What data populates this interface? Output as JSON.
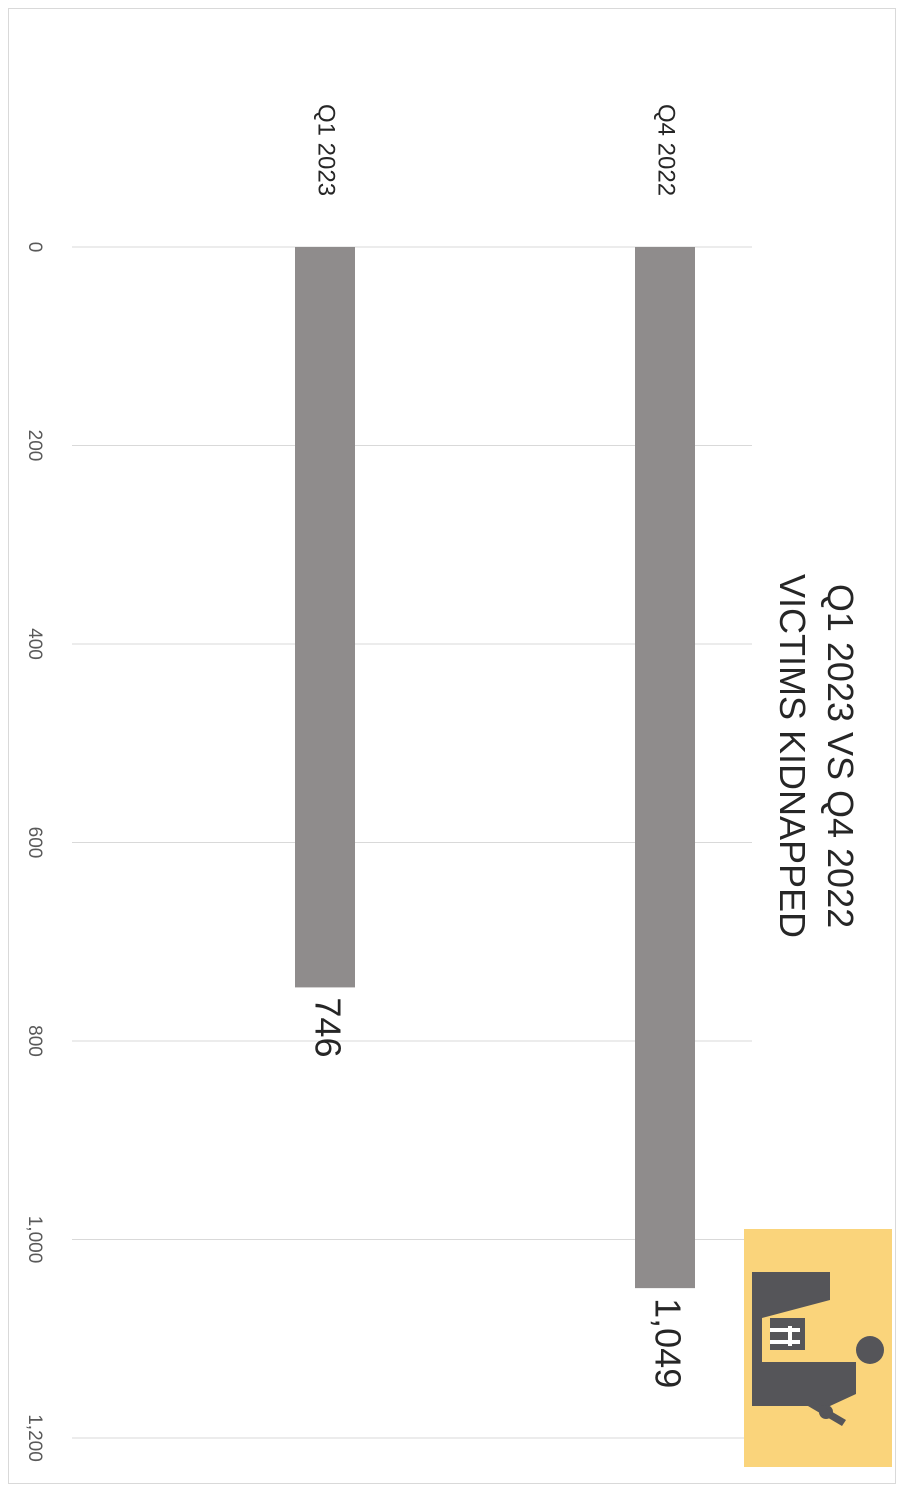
{
  "chart_data": {
    "type": "bar",
    "title": "Q1 2023 VS Q4 2022 VICTIMS KIDNAPPED",
    "title_lines": [
      "Q1 2023 VS Q4 2022",
      "VICTIMS KIDNAPPED"
    ],
    "categories": [
      "Q4 2022",
      "Q1 2023"
    ],
    "values": [
      1049,
      746
    ],
    "data_labels": [
      "1,049",
      "746"
    ],
    "xlim": [
      0,
      1200
    ],
    "ticks": [
      0,
      200,
      400,
      600,
      800,
      1000,
      1200
    ],
    "tick_labels": [
      "0",
      "200",
      "400",
      "600",
      "800",
      "1,000",
      "1,200"
    ],
    "orientation": "rotated 90° clockwise",
    "grid": true,
    "bar_color": "#8f8c8c",
    "icon": {
      "name": "kidnapping-icon",
      "background": "#fad47b",
      "color": "#555559"
    }
  }
}
